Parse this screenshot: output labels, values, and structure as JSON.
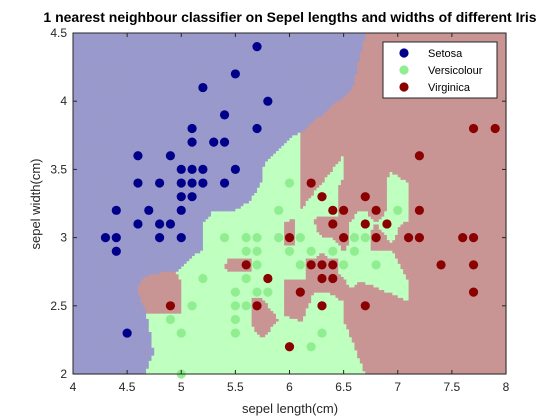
{
  "chart_data": {
    "type": "scatter",
    "title": "1 nearest neighbour classifier on Sepel lengths and widths of different Iris",
    "xlabel": "sepel length(cm)",
    "ylabel": "sepel width(cm)",
    "xlim": [
      4,
      8
    ],
    "ylim": [
      2,
      4.5
    ],
    "x_ticks": [
      4,
      4.5,
      5,
      5.5,
      6,
      6.5,
      7,
      7.5,
      8
    ],
    "y_ticks": [
      2,
      2.5,
      3,
      3.5,
      4,
      4.5
    ],
    "grid": false,
    "legend_position": "top-right",
    "regions": [
      {
        "name": "Setosa",
        "color": "#9999cc"
      },
      {
        "name": "Versicolour",
        "color": "#bfffbf"
      },
      {
        "name": "Virginica",
        "color": "#c99494"
      }
    ],
    "series": [
      {
        "name": "Setosa",
        "color": "#00008b",
        "points": [
          [
            4.3,
            3.0
          ],
          [
            4.4,
            2.9
          ],
          [
            4.4,
            3.0
          ],
          [
            4.4,
            3.2
          ],
          [
            4.5,
            2.3
          ],
          [
            4.6,
            3.1
          ],
          [
            4.6,
            3.4
          ],
          [
            4.6,
            3.6
          ],
          [
            4.7,
            3.2
          ],
          [
            4.8,
            3.0
          ],
          [
            4.8,
            3.1
          ],
          [
            4.8,
            3.4
          ],
          [
            4.9,
            3.1
          ],
          [
            4.9,
            3.6
          ],
          [
            5.0,
            3.0
          ],
          [
            5.0,
            3.2
          ],
          [
            5.0,
            3.3
          ],
          [
            5.0,
            3.4
          ],
          [
            5.0,
            3.5
          ],
          [
            5.1,
            3.3
          ],
          [
            5.1,
            3.4
          ],
          [
            5.1,
            3.5
          ],
          [
            5.1,
            3.7
          ],
          [
            5.1,
            3.8
          ],
          [
            5.2,
            3.4
          ],
          [
            5.2,
            3.5
          ],
          [
            5.2,
            4.1
          ],
          [
            5.3,
            3.7
          ],
          [
            5.4,
            3.4
          ],
          [
            5.4,
            3.7
          ],
          [
            5.4,
            3.9
          ],
          [
            5.5,
            3.5
          ],
          [
            5.5,
            4.2
          ],
          [
            5.7,
            3.8
          ],
          [
            5.7,
            4.4
          ],
          [
            5.8,
            4.0
          ]
        ]
      },
      {
        "name": "Versicolour",
        "color": "#90ee90",
        "points": [
          [
            4.9,
            2.4
          ],
          [
            5.0,
            2.0
          ],
          [
            5.0,
            2.3
          ],
          [
            5.1,
            2.5
          ],
          [
            5.2,
            2.7
          ],
          [
            5.4,
            3.0
          ],
          [
            5.5,
            2.3
          ],
          [
            5.5,
            2.4
          ],
          [
            5.5,
            2.5
          ],
          [
            5.5,
            2.6
          ],
          [
            5.6,
            2.5
          ],
          [
            5.6,
            2.7
          ],
          [
            5.6,
            2.9
          ],
          [
            5.6,
            3.0
          ],
          [
            5.7,
            2.6
          ],
          [
            5.7,
            2.8
          ],
          [
            5.7,
            2.9
          ],
          [
            5.7,
            3.0
          ],
          [
            5.8,
            2.6
          ],
          [
            5.8,
            2.7
          ],
          [
            5.9,
            3.0
          ],
          [
            5.9,
            3.2
          ],
          [
            6.0,
            2.2
          ],
          [
            6.0,
            2.9
          ],
          [
            6.0,
            3.4
          ],
          [
            6.1,
            2.8
          ],
          [
            6.1,
            3.0
          ],
          [
            6.2,
            2.2
          ],
          [
            6.2,
            2.9
          ],
          [
            6.3,
            2.3
          ],
          [
            6.3,
            2.5
          ],
          [
            6.3,
            3.3
          ],
          [
            6.4,
            2.9
          ],
          [
            6.4,
            3.2
          ],
          [
            6.5,
            2.8
          ],
          [
            6.6,
            2.9
          ],
          [
            6.6,
            3.0
          ],
          [
            6.7,
            3.0
          ],
          [
            6.7,
            3.1
          ],
          [
            6.8,
            2.8
          ],
          [
            6.9,
            3.1
          ],
          [
            7.0,
            3.2
          ]
        ]
      },
      {
        "name": "Virginica",
        "color": "#8b0000",
        "points": [
          [
            4.9,
            2.5
          ],
          [
            5.6,
            2.8
          ],
          [
            5.7,
            2.5
          ],
          [
            5.8,
            2.7
          ],
          [
            6.0,
            2.2
          ],
          [
            6.0,
            3.0
          ],
          [
            6.1,
            2.6
          ],
          [
            6.2,
            2.8
          ],
          [
            6.2,
            3.4
          ],
          [
            6.3,
            2.5
          ],
          [
            6.3,
            2.7
          ],
          [
            6.3,
            2.8
          ],
          [
            6.3,
            3.3
          ],
          [
            6.4,
            2.7
          ],
          [
            6.4,
            2.8
          ],
          [
            6.4,
            3.1
          ],
          [
            6.4,
            3.2
          ],
          [
            6.5,
            3.0
          ],
          [
            6.5,
            3.2
          ],
          [
            6.7,
            2.5
          ],
          [
            6.7,
            3.1
          ],
          [
            6.7,
            3.3
          ],
          [
            6.8,
            3.0
          ],
          [
            6.8,
            3.2
          ],
          [
            6.9,
            3.1
          ],
          [
            7.1,
            3.0
          ],
          [
            7.2,
            3.0
          ],
          [
            7.2,
            3.2
          ],
          [
            7.2,
            3.6
          ],
          [
            7.4,
            2.8
          ],
          [
            7.6,
            3.0
          ],
          [
            7.7,
            2.6
          ],
          [
            7.7,
            2.8
          ],
          [
            7.7,
            3.0
          ],
          [
            7.7,
            3.8
          ],
          [
            7.9,
            3.8
          ]
        ]
      }
    ]
  }
}
